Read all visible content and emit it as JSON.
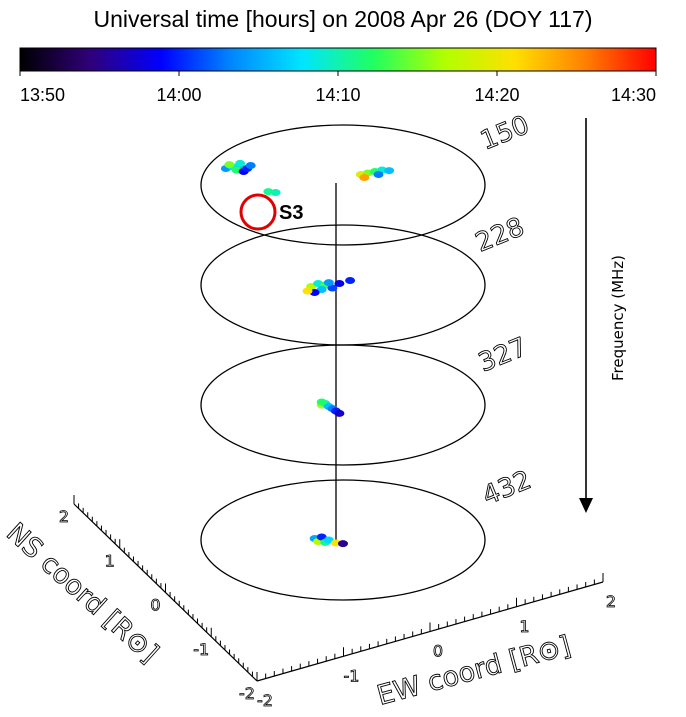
{
  "chart_data": {
    "type": "scatter",
    "title": "Universal time [hours] on 2008 Apr 26 (DOY 117)",
    "colorbar": {
      "ticks": [
        "13:50",
        "14:00",
        "14:10",
        "14:20",
        "14:30"
      ],
      "range_hours": [
        13.8333,
        14.5
      ],
      "colormap": [
        "#000000",
        "#30007a",
        "#0000ff",
        "#0088ff",
        "#00e5ff",
        "#20ff60",
        "#b0ff00",
        "#ffe000",
        "#ff8000",
        "#ff0000"
      ]
    },
    "frequency_axis_label": "Frequency (MHz)",
    "frequencies": [
      {
        "mhz": "150"
      },
      {
        "mhz": "228"
      },
      {
        "mhz": "327"
      },
      {
        "mhz": "432"
      }
    ],
    "xlabel": "EW coord [R⊙]",
    "ylabel": "NS coord [R⊙]",
    "xlim": [
      -2,
      2
    ],
    "ylim": [
      -2,
      2
    ],
    "xticks": [
      "-2",
      "-1",
      "0",
      "1",
      "2"
    ],
    "yticks": [
      "-2",
      "-1",
      "0",
      "1",
      "2"
    ],
    "annotation": "S3",
    "series": [
      {
        "mhz": "150",
        "points": [
          {
            "ew": -1.65,
            "ns": 0.55,
            "t": 14.07
          },
          {
            "ew": -1.55,
            "ns": 0.6,
            "t": 14.13
          },
          {
            "ew": -1.45,
            "ns": 0.58,
            "t": 14.1
          },
          {
            "ew": -1.5,
            "ns": 0.5,
            "t": 14.2
          },
          {
            "ew": -1.4,
            "ns": 0.45,
            "t": 13.98
          },
          {
            "ew": -1.35,
            "ns": 0.55,
            "t": 14.0
          },
          {
            "ew": -1.6,
            "ns": 0.68,
            "t": 14.25
          },
          {
            "ew": -1.3,
            "ns": 0.65,
            "t": 14.05
          },
          {
            "ew": -1.45,
            "ns": 0.72,
            "t": 14.15
          },
          {
            "ew": -0.95,
            "ns": -0.25,
            "t": 14.16
          },
          {
            "ew": -1.05,
            "ns": -0.22,
            "t": 14.18
          },
          {
            "ew": 0.25,
            "ns": 0.35,
            "t": 14.32
          },
          {
            "ew": 0.35,
            "ns": 0.4,
            "t": 14.25
          },
          {
            "ew": 0.45,
            "ns": 0.45,
            "t": 14.2
          },
          {
            "ew": 0.55,
            "ns": 0.5,
            "t": 14.15
          },
          {
            "ew": 0.65,
            "ns": 0.48,
            "t": 14.1
          },
          {
            "ew": 0.3,
            "ns": 0.25,
            "t": 14.4
          },
          {
            "ew": 0.5,
            "ns": 0.35,
            "t": 14.05
          }
        ]
      },
      {
        "mhz": "228",
        "points": [
          {
            "ew": -0.45,
            "ns": -0.05,
            "t": 14.28
          },
          {
            "ew": -0.35,
            "ns": 0.05,
            "t": 14.15
          },
          {
            "ew": -0.25,
            "ns": 0.0,
            "t": 14.22
          },
          {
            "ew": -0.3,
            "ns": -0.15,
            "t": 14.1
          },
          {
            "ew": -0.15,
            "ns": -0.1,
            "t": 14.02
          },
          {
            "ew": -0.2,
            "ns": 0.08,
            "t": 14.07
          },
          {
            "ew": -0.4,
            "ns": -0.25,
            "t": 13.98
          },
          {
            "ew": -0.05,
            "ns": 0.05,
            "t": 13.97
          },
          {
            "ew": -0.5,
            "ns": -0.2,
            "t": 14.35
          },
          {
            "ew": 0.1,
            "ns": 0.15,
            "t": 14.0
          }
        ]
      },
      {
        "mhz": "327",
        "points": [
          {
            "ew": -0.3,
            "ns": 0.0,
            "t": 14.27
          },
          {
            "ew": -0.25,
            "ns": 0.05,
            "t": 14.15
          },
          {
            "ew": -0.2,
            "ns": -0.05,
            "t": 14.1
          },
          {
            "ew": -0.15,
            "ns": -0.12,
            "t": 14.05
          },
          {
            "ew": -0.1,
            "ns": -0.2,
            "t": 14.0
          },
          {
            "ew": -0.05,
            "ns": -0.28,
            "t": 13.95
          },
          {
            "ew": -0.3,
            "ns": 0.1,
            "t": 14.2
          }
        ]
      },
      {
        "mhz": "432",
        "points": [
          {
            "ew": -0.4,
            "ns": 0.05,
            "t": 14.08
          },
          {
            "ew": -0.35,
            "ns": -0.05,
            "t": 14.28
          },
          {
            "ew": -0.3,
            "ns": 0.1,
            "t": 14.0
          },
          {
            "ew": -0.25,
            "ns": -0.08,
            "t": 14.18
          },
          {
            "ew": -0.2,
            "ns": 0.0,
            "t": 14.12
          },
          {
            "ew": -0.1,
            "ns": -0.1,
            "t": 14.35
          },
          {
            "ew": 0.0,
            "ns": -0.12,
            "t": 13.92
          }
        ]
      }
    ]
  }
}
